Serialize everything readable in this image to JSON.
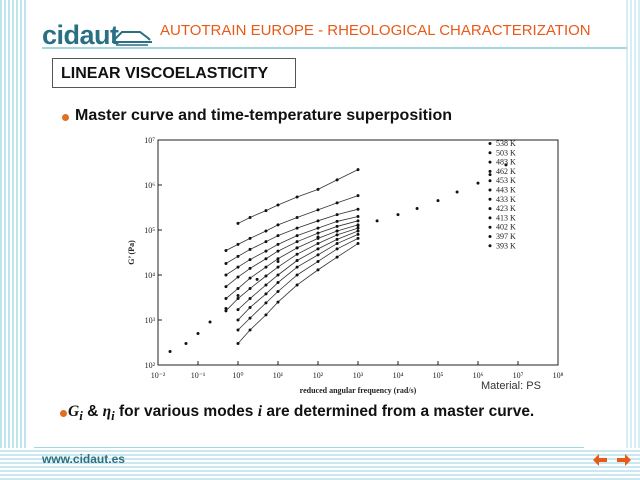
{
  "header": {
    "logo_text": "cidaut",
    "title": "AUTOTRAIN EUROPE - RHEOLOGICAL CHARACTERIZATION"
  },
  "section": {
    "title": "LINEAR VISCOELASTICITY"
  },
  "bullets": {
    "first": "Master curve and time-temperature superposition",
    "second": {
      "symbol_g": "G",
      "sub_i1": "i",
      "amp": " & ",
      "symbol_eta": "η",
      "sub_i2": "i",
      "mid": " for various modes ",
      "mode_i": "i",
      "end": " are determined from a master curve."
    }
  },
  "material_note": "Material: PS",
  "footer": {
    "url": "www.cidaut.es"
  },
  "colors": {
    "accent": "#e85a1a",
    "brand": "#2a6f82",
    "stripe": "#bfe4ec"
  },
  "icons": {
    "prev": "arrow-left-icon",
    "next": "arrow-right-icon"
  },
  "chart_data": {
    "type": "scatter",
    "xlabel": "reduced angular frequency (rad/s)",
    "ylabel": "G’ (Pa)",
    "x_scale": "log",
    "y_scale": "log",
    "xlim": [
      0.01,
      100000000
    ],
    "ylim": [
      100,
      10000000
    ],
    "x_ticks": [
      "10⁻²",
      "10⁻¹",
      "10⁰",
      "10¹",
      "10²",
      "10³",
      "10⁴",
      "10⁵",
      "10⁶",
      "10⁷",
      "10⁸"
    ],
    "y_ticks": [
      "10²",
      "10³",
      "10⁴",
      "10⁵",
      "10⁶",
      "10⁷"
    ],
    "legend_position": "top-right",
    "legend": [
      "538 K",
      "503 K",
      "483 K",
      "462 K",
      "453 K",
      "443 K",
      "433 K",
      "423 K",
      "413 K",
      "402 K",
      "397 K",
      "393 K"
    ],
    "series": [
      {
        "name": "538 K",
        "points": [
          [
            0.02,
            200
          ],
          [
            0.05,
            300
          ],
          [
            0.1,
            500
          ],
          [
            0.2,
            900
          ],
          [
            0.5,
            1800
          ],
          [
            1,
            3500
          ],
          [
            3,
            8000
          ],
          [
            10,
            20000
          ],
          [
            30,
            40000
          ],
          [
            100,
            70000
          ],
          [
            300,
            95000
          ],
          [
            1000,
            125000
          ],
          [
            3000,
            160000
          ],
          [
            10000,
            220000
          ],
          [
            30000,
            300000
          ],
          [
            100000,
            450000
          ],
          [
            300000,
            700000
          ],
          [
            1000000,
            1100000
          ],
          [
            2000000,
            1700000
          ],
          [
            5000000,
            2800000
          ]
        ]
      },
      {
        "name": "503 K",
        "points": [
          [
            1,
            300
          ],
          [
            2,
            600
          ],
          [
            5,
            1300
          ],
          [
            10,
            2500
          ],
          [
            30,
            6000
          ],
          [
            100,
            13000
          ],
          [
            300,
            25000
          ],
          [
            1000,
            50000
          ]
        ]
      },
      {
        "name": "483 K",
        "points": [
          [
            1,
            600
          ],
          [
            2,
            1100
          ],
          [
            5,
            2400
          ],
          [
            10,
            4300
          ],
          [
            30,
            10000
          ],
          [
            100,
            20000
          ],
          [
            300,
            38000
          ],
          [
            1000,
            65000
          ]
        ]
      },
      {
        "name": "462 K",
        "points": [
          [
            1,
            1000
          ],
          [
            2,
            1900
          ],
          [
            5,
            3800
          ],
          [
            10,
            6800
          ],
          [
            30,
            15000
          ],
          [
            100,
            28000
          ],
          [
            300,
            50000
          ],
          [
            1000,
            80000
          ]
        ]
      },
      {
        "name": "453 K",
        "points": [
          [
            1,
            1700
          ],
          [
            2,
            3000
          ],
          [
            5,
            6000
          ],
          [
            10,
            10000
          ],
          [
            30,
            21000
          ],
          [
            100,
            38000
          ],
          [
            300,
            62000
          ],
          [
            1000,
            95000
          ]
        ]
      },
      {
        "name": "443 K",
        "points": [
          [
            0.5,
            1600
          ],
          [
            1,
            3000
          ],
          [
            2,
            5000
          ],
          [
            5,
            9500
          ],
          [
            10,
            15000
          ],
          [
            30,
            29000
          ],
          [
            100,
            50000
          ],
          [
            300,
            78000
          ],
          [
            1000,
            110000
          ]
        ]
      },
      {
        "name": "433 K",
        "points": [
          [
            0.5,
            3000
          ],
          [
            1,
            5000
          ],
          [
            2,
            8500
          ],
          [
            5,
            15000
          ],
          [
            10,
            23000
          ],
          [
            30,
            40000
          ],
          [
            100,
            65000
          ],
          [
            300,
            95000
          ],
          [
            1000,
            130000
          ]
        ]
      },
      {
        "name": "423 K",
        "points": [
          [
            0.5,
            5500
          ],
          [
            1,
            9000
          ],
          [
            2,
            14000
          ],
          [
            5,
            23000
          ],
          [
            10,
            34000
          ],
          [
            30,
            55000
          ],
          [
            100,
            85000
          ],
          [
            300,
            120000
          ],
          [
            1000,
            160000
          ]
        ]
      },
      {
        "name": "413 K",
        "points": [
          [
            0.5,
            10000
          ],
          [
            1,
            15000
          ],
          [
            2,
            22000
          ],
          [
            5,
            34000
          ],
          [
            10,
            48000
          ],
          [
            30,
            75000
          ],
          [
            100,
            110000
          ],
          [
            300,
            155000
          ],
          [
            1000,
            200000
          ]
        ]
      },
      {
        "name": "402 K",
        "points": [
          [
            0.5,
            18000
          ],
          [
            1,
            26000
          ],
          [
            2,
            37000
          ],
          [
            5,
            55000
          ],
          [
            10,
            75000
          ],
          [
            30,
            110000
          ],
          [
            100,
            160000
          ],
          [
            300,
            220000
          ],
          [
            1000,
            290000
          ]
        ]
      },
      {
        "name": "397 K",
        "points": [
          [
            0.5,
            35000
          ],
          [
            1,
            48000
          ],
          [
            2,
            65000
          ],
          [
            5,
            95000
          ],
          [
            10,
            130000
          ],
          [
            30,
            190000
          ],
          [
            100,
            280000
          ],
          [
            300,
            400000
          ],
          [
            1000,
            580000
          ]
        ]
      },
      {
        "name": "393 K",
        "points": [
          [
            1,
            140000
          ],
          [
            2,
            190000
          ],
          [
            5,
            270000
          ],
          [
            10,
            360000
          ],
          [
            30,
            540000
          ],
          [
            100,
            800000
          ],
          [
            300,
            1300000
          ],
          [
            1000,
            2200000
          ]
        ]
      }
    ]
  }
}
